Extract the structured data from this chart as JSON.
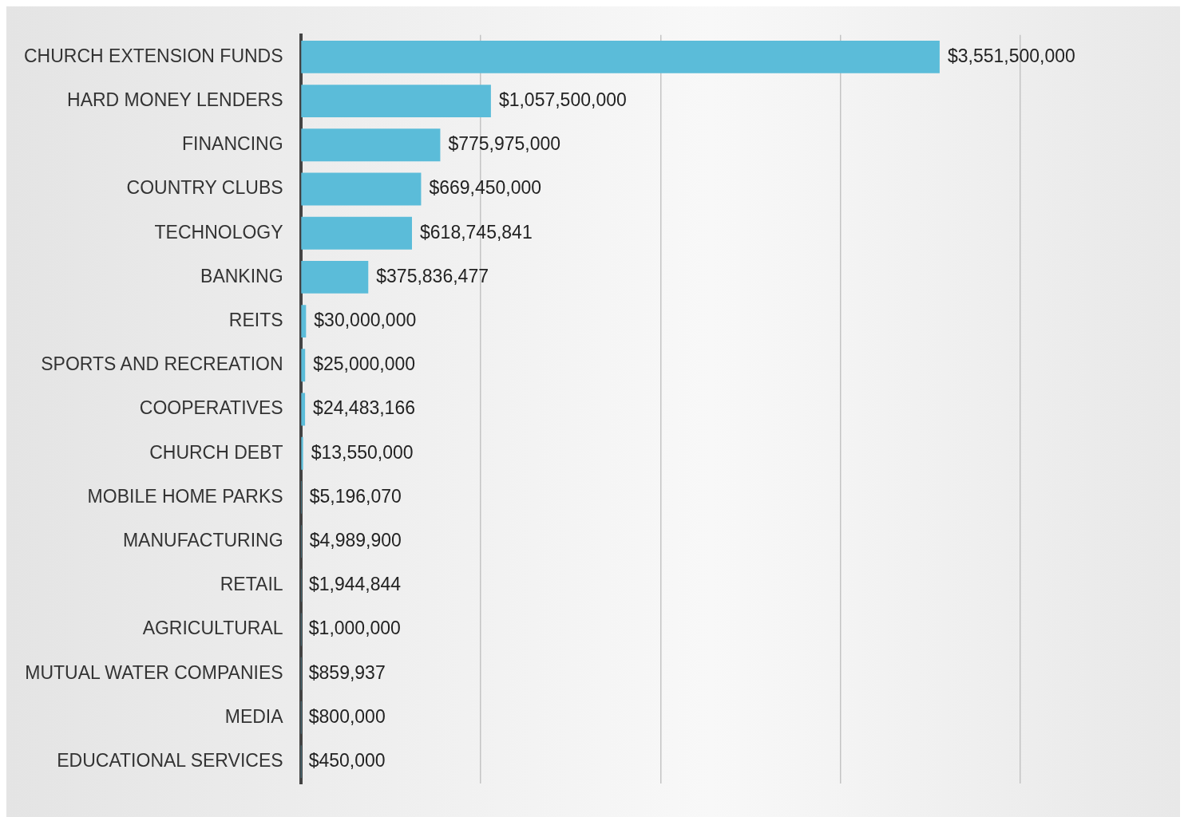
{
  "chart_data": {
    "type": "bar",
    "orientation": "horizontal",
    "categories": [
      "CHURCH EXTENSION FUNDS",
      "HARD MONEY LENDERS",
      "FINANCING",
      "COUNTRY CLUBS",
      "TECHNOLOGY",
      "BANKING",
      "REITS",
      "SPORTS AND RECREATION",
      "COOPERATIVES",
      "CHURCH DEBT",
      "MOBILE HOME PARKS",
      "MANUFACTURING",
      "RETAIL",
      "AGRICULTURAL",
      "MUTUAL WATER COMPANIES",
      "MEDIA",
      "EDUCATIONAL SERVICES"
    ],
    "values": [
      3551500000,
      1057500000,
      775975000,
      669450000,
      618745841,
      375836477,
      30000000,
      25000000,
      24483166,
      13550000,
      5196070,
      4989900,
      1944844,
      1000000,
      859937,
      800000,
      450000
    ],
    "value_labels": [
      "$3,551,500,000",
      "$1,057,500,000",
      "$775,975,000",
      "$669,450,000",
      "$618,745,841",
      "$375,836,477",
      "$30,000,000",
      "$25,000,000",
      "$24,483,166",
      "$13,550,000",
      "$5,196,070",
      "$4,989,900",
      "$1,944,844",
      "$1,000,000",
      "$859,937",
      "$800,000",
      "$450,000"
    ],
    "color": "#5bbcd9",
    "xlim": [
      0,
      4000000000
    ],
    "xticks": [
      {
        "value": 0,
        "label": null
      },
      {
        "value": 1000000000,
        "label": null
      },
      {
        "value": 2000000000,
        "label": null
      },
      {
        "value": 3000000000,
        "label": null
      },
      {
        "value": 4000000000,
        "label": null
      }
    ],
    "grid": "x",
    "tick_labels": "y"
  }
}
